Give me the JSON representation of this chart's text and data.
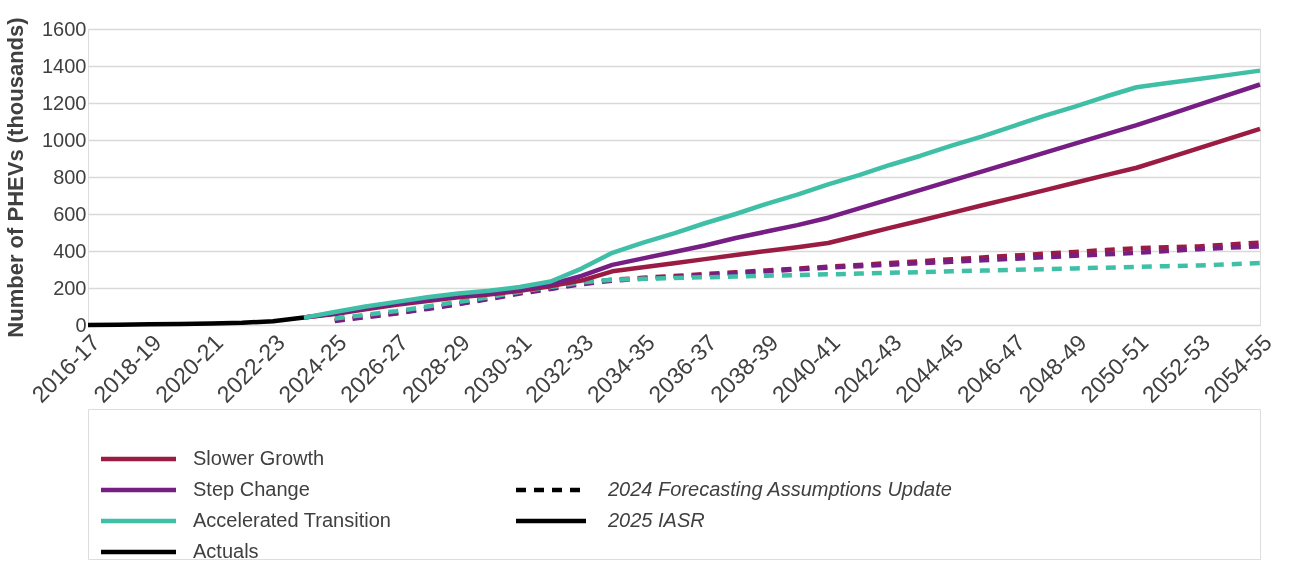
{
  "chart_data": {
    "type": "line",
    "ylabel": "Number of PHEVs (thousands)",
    "categories": [
      "2016-17",
      null,
      "2018-19",
      null,
      "2020-21",
      null,
      "2022-23",
      null,
      "2024-25",
      null,
      "2026-27",
      null,
      "2028-29",
      null,
      "2030-31",
      null,
      "2032-33",
      null,
      "2034-35",
      null,
      "2036-37",
      null,
      "2038-39",
      null,
      "2040-41",
      null,
      "2042-43",
      null,
      "2044-45",
      null,
      "2046-47",
      null,
      "2048-49",
      null,
      "2050-51",
      null,
      "2052-53",
      null,
      "2054-55"
    ],
    "ylim": [
      0,
      1600
    ],
    "yticks": [
      0,
      200,
      400,
      600,
      800,
      {
        "value": 1000,
        "label": "1000"
      },
      {
        "value": 1200,
        "label": "1200"
      },
      {
        "value": 1400,
        "label": "1400"
      },
      {
        "value": 1600,
        "label": "1600"
      }
    ],
    "grid": "y",
    "legend": "bottom",
    "marker": "none",
    "series": [
      {
        "name": "Slower Growth",
        "color": "#9b1c42",
        "line_style": "solid",
        "values": [
          null,
          null,
          null,
          null,
          null,
          null,
          null,
          40,
          60,
          85,
          110,
          130,
          150,
          165,
          185,
          210,
          240,
          290,
          312,
          334,
          356,
          378,
          400,
          420,
          443,
          484,
          525,
          565,
          606,
          647,
          687,
          728,
          769,
          810,
          850,
          902,
          955,
          1007,
          1060
        ]
      },
      {
        "name": "Step Change",
        "color": "#761e83",
        "line_style": "solid",
        "values": [
          null,
          null,
          null,
          null,
          null,
          null,
          null,
          40,
          62,
          90,
          115,
          135,
          155,
          172,
          192,
          220,
          265,
          325,
          360,
          395,
          430,
          470,
          505,
          540,
          580,
          630,
          680,
          730,
          780,
          830,
          880,
          930,
          980,
          1030,
          1080,
          1135,
          1190,
          1245,
          1300
        ]
      },
      {
        "name": "Accelerated Transition",
        "color": "#3fbfa6",
        "line_style": "solid",
        "values": [
          null,
          null,
          null,
          null,
          null,
          null,
          null,
          40,
          70,
          100,
          125,
          150,
          170,
          185,
          205,
          235,
          305,
          390,
          445,
          495,
          550,
          600,
          655,
          705,
          760,
          810,
          865,
          915,
          970,
          1020,
          1075,
          1130,
          1180,
          1235,
          1285,
          1308,
          1330,
          1352,
          1375
        ]
      },
      {
        "name": "Actuals",
        "color": "#000000",
        "line_style": "solid",
        "values": [
          0,
          2,
          4,
          6,
          8,
          12,
          20,
          40,
          null,
          null,
          null,
          null,
          null,
          null,
          null,
          null,
          null,
          null,
          null,
          null,
          null,
          null,
          null,
          null,
          null,
          null,
          null,
          null,
          null,
          null,
          null,
          null,
          null,
          null,
          null,
          null,
          null,
          null,
          null
        ]
      },
      {
        "color": "#9b1c42",
        "line_style": "dashed",
        "values": [
          null,
          null,
          null,
          null,
          null,
          null,
          null,
          null,
          25,
          45,
          65,
          90,
          115,
          145,
          175,
          200,
          225,
          245,
          255,
          265,
          275,
          285,
          295,
          305,
          315,
          325,
          335,
          345,
          355,
          365,
          375,
          385,
          395,
          405,
          415,
          420,
          425,
          435,
          445
        ]
      },
      {
        "color": "#761e83",
        "line_style": "dashed",
        "values": [
          null,
          null,
          null,
          null,
          null,
          null,
          null,
          null,
          22,
          42,
          62,
          87,
          112,
          140,
          170,
          195,
          220,
          240,
          250,
          260,
          270,
          280,
          290,
          300,
          310,
          318,
          326,
          334,
          342,
          350,
          358,
          366,
          374,
          382,
          390,
          400,
          410,
          418,
          425
        ]
      },
      {
        "color": "#3fbfa6",
        "line_style": "dashed",
        "values": [
          null,
          null,
          null,
          null,
          null,
          null,
          null,
          null,
          35,
          55,
          75,
          100,
          125,
          150,
          180,
          205,
          230,
          245,
          250,
          254,
          258,
          262,
          266,
          270,
          274,
          278,
          282,
          286,
          290,
          294,
          298,
          302,
          306,
          310,
          314,
          318,
          322,
          328,
          335
        ]
      }
    ],
    "annotations": [
      "2024 Forecasting Assumptions Update",
      "2025 IASR"
    ]
  }
}
